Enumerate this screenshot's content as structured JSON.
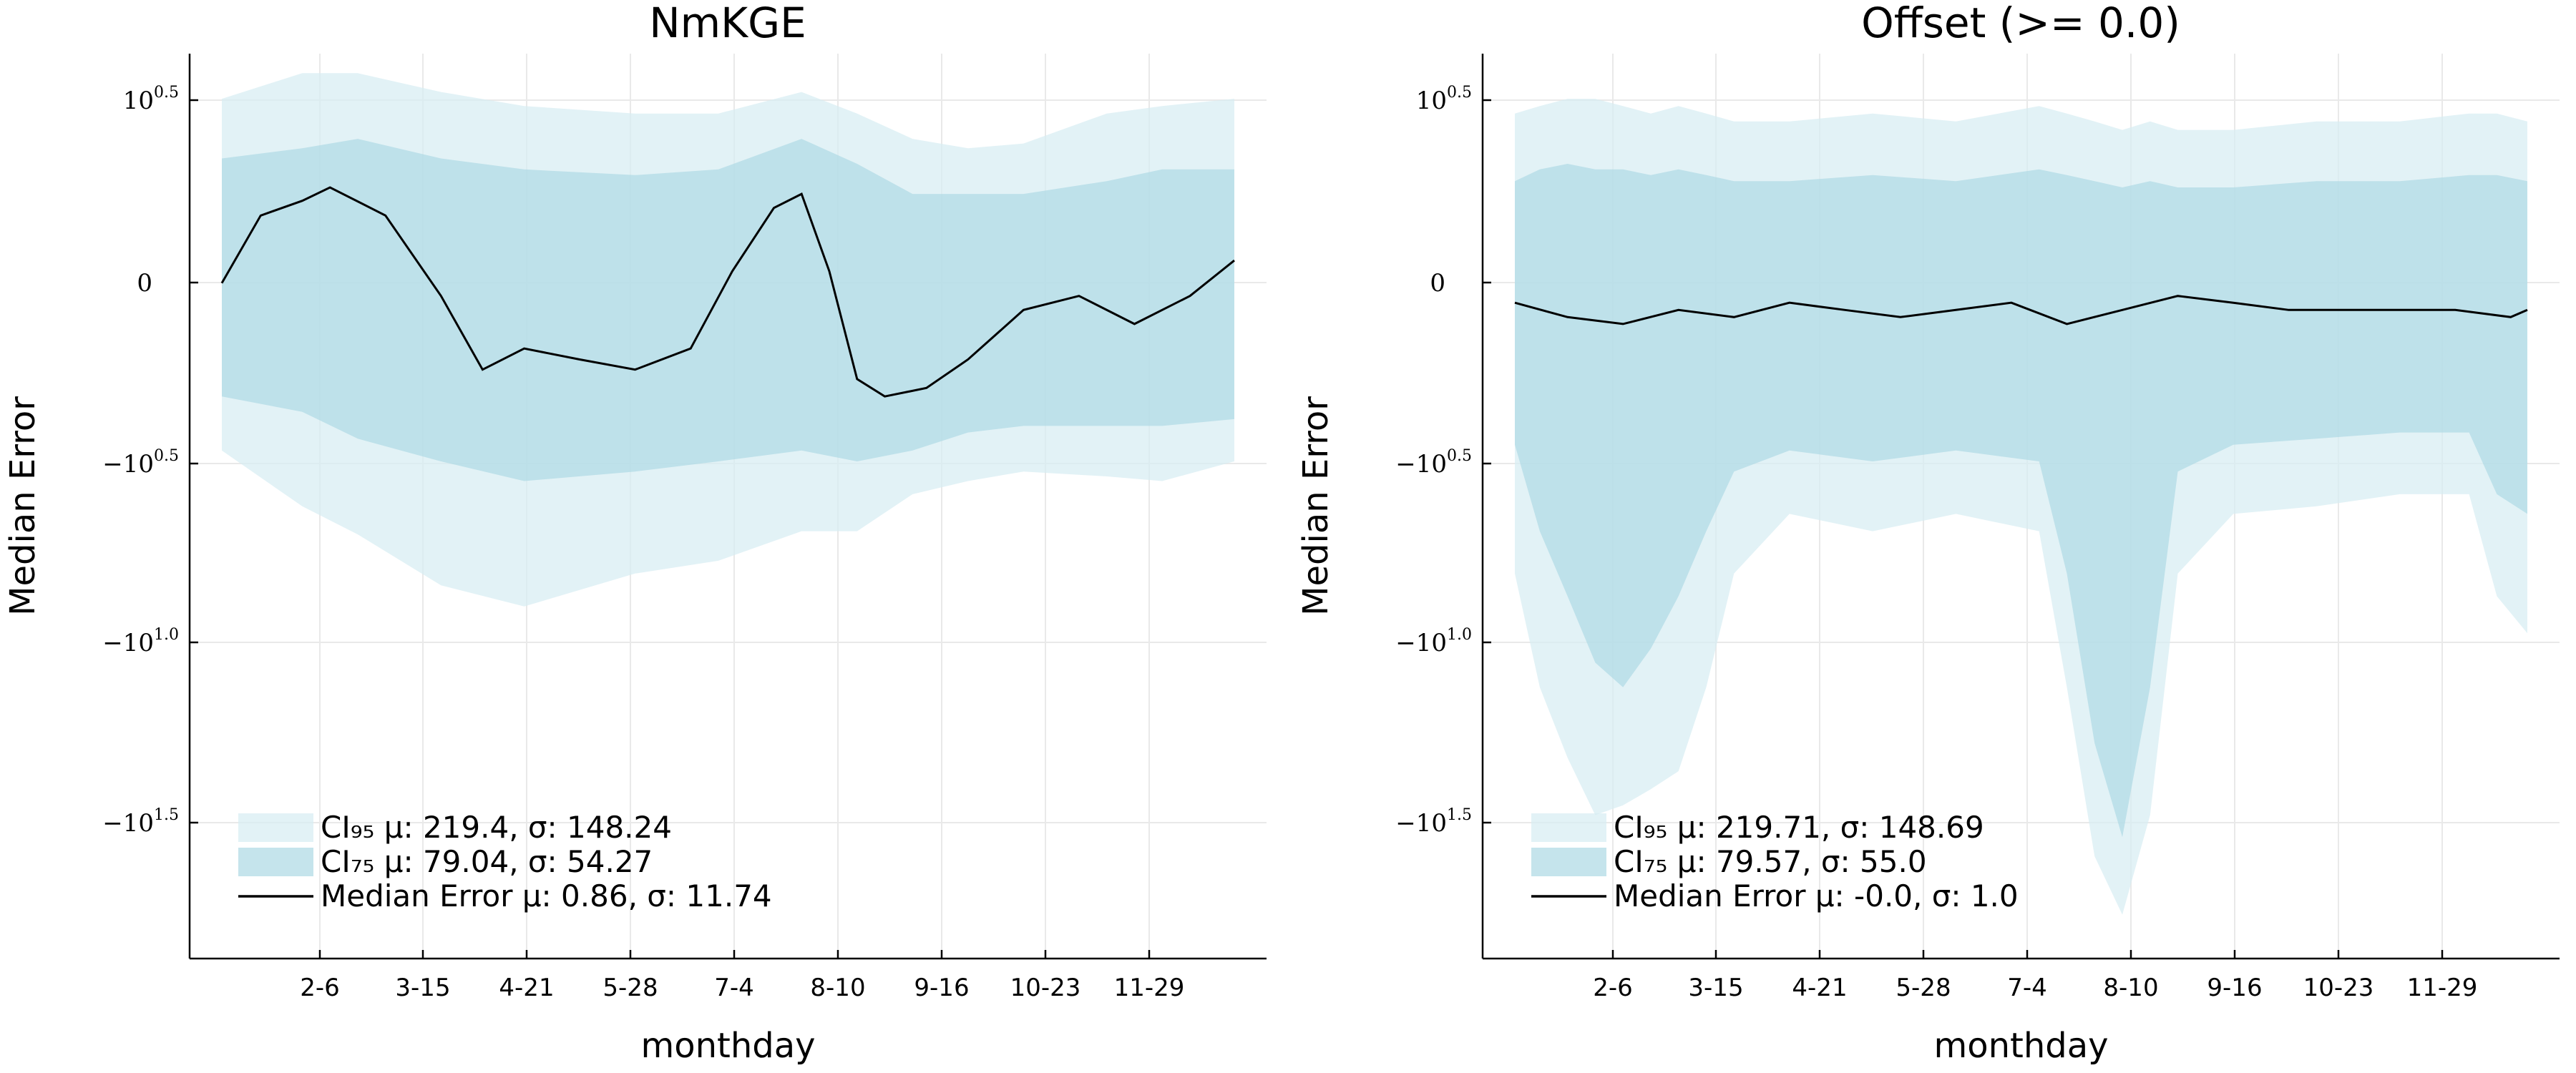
{
  "chart_data": [
    {
      "type": "area",
      "title": "NmKGE",
      "xlabel": "monthday",
      "ylabel": "Median Error",
      "x_tick_labels": [
        "2-6",
        "3-15",
        "4-21",
        "5-28",
        "7-4",
        "8-10",
        "9-16",
        "10-23",
        "11-29"
      ],
      "y_scale": "symlog",
      "y_tick_labels": [
        {
          "base": "10",
          "exp": "0.5",
          "sign": ""
        },
        {
          "base": "0",
          "exp": "",
          "sign": ""
        },
        {
          "base": "10",
          "exp": "0.5",
          "sign": "−"
        },
        {
          "base": "10",
          "exp": "1.0",
          "sign": "−"
        },
        {
          "base": "10",
          "exp": "1.5",
          "sign": "−"
        }
      ],
      "y_tick_values": [
        3.162,
        0,
        -3.162,
        -10,
        -31.62
      ],
      "grid": true,
      "legend_position": "bottom-left",
      "colors": {
        "ci95": "#d6edf2",
        "ci75": "#b2dbe6",
        "median": "#000000"
      },
      "series": [
        {
          "name": "CI95",
          "legend_label": "CI₉₅ μ: 219.4, σ: 148.24",
          "x": [
            1,
            30,
            50,
            80,
            110,
            150,
            180,
            210,
            230,
            250,
            270,
            290,
            320,
            340,
            366
          ],
          "upper": [
            3.2,
            4.0,
            4.0,
            3.4,
            3.0,
            2.8,
            2.8,
            3.4,
            2.8,
            2.2,
            2.0,
            2.1,
            2.8,
            3.0,
            3.2
          ],
          "lower": [
            -1.6,
            -2.8,
            -3.6,
            -5.5,
            -6.5,
            -5.0,
            -4.5,
            -3.5,
            -3.5,
            -2.5,
            -2.2,
            -2.0,
            -2.1,
            -2.2,
            -1.8
          ]
        },
        {
          "name": "CI75",
          "legend_label": "CI₇₅ μ: 79.04, σ: 54.27",
          "x": [
            1,
            30,
            50,
            80,
            110,
            150,
            180,
            210,
            230,
            250,
            270,
            290,
            320,
            340,
            366
          ],
          "upper": [
            1.8,
            2.0,
            2.2,
            1.8,
            1.6,
            1.5,
            1.6,
            2.2,
            1.7,
            1.2,
            1.2,
            1.2,
            1.4,
            1.6,
            1.6
          ],
          "lower": [
            -0.8,
            -1.0,
            -1.4,
            -1.8,
            -2.2,
            -2.0,
            -1.8,
            -1.6,
            -1.8,
            -1.6,
            -1.3,
            -1.2,
            -1.2,
            -1.2,
            -1.1
          ]
        },
        {
          "name": "Median Error",
          "legend_label": "Median Error μ: 0.86, σ: 11.74",
          "x": [
            1,
            15,
            30,
            40,
            60,
            80,
            95,
            110,
            130,
            150,
            170,
            185,
            200,
            210,
            220,
            230,
            240,
            255,
            270,
            290,
            310,
            330,
            350,
            366
          ],
          "y": [
            0.2,
            0.9,
            1.1,
            1.3,
            0.9,
            0.1,
            -0.5,
            -0.3,
            -0.4,
            -0.5,
            -0.3,
            0.3,
            1.0,
            1.2,
            0.3,
            -0.6,
            -0.8,
            -0.7,
            -0.4,
            0.0,
            0.1,
            -0.1,
            0.1,
            0.4
          ]
        }
      ]
    },
    {
      "type": "area",
      "title": "Offset (>= 0.0)",
      "xlabel": "monthday",
      "ylabel": "Median Error",
      "x_tick_labels": [
        "2-6",
        "3-15",
        "4-21",
        "5-28",
        "7-4",
        "8-10",
        "9-16",
        "10-23",
        "11-29"
      ],
      "y_scale": "symlog",
      "y_tick_labels": [
        {
          "base": "10",
          "exp": "0.5",
          "sign": ""
        },
        {
          "base": "0",
          "exp": "",
          "sign": ""
        },
        {
          "base": "10",
          "exp": "0.5",
          "sign": "−"
        },
        {
          "base": "10",
          "exp": "1.0",
          "sign": "−"
        },
        {
          "base": "10",
          "exp": "1.5",
          "sign": "−"
        }
      ],
      "y_tick_values": [
        3.162,
        0,
        -3.162,
        -10,
        -31.62
      ],
      "grid": true,
      "legend_position": "bottom-left",
      "colors": {
        "ci95": "#d6edf2",
        "ci75": "#b2dbe6",
        "median": "#000000"
      },
      "series": [
        {
          "name": "CI95",
          "legend_label": "CI₉₅ μ: 219.71, σ: 148.69",
          "x": [
            1,
            10,
            20,
            30,
            40,
            50,
            60,
            70,
            80,
            100,
            130,
            160,
            190,
            200,
            210,
            220,
            230,
            240,
            260,
            290,
            320,
            345,
            355,
            366
          ],
          "upper": [
            2.8,
            3.0,
            3.2,
            3.2,
            3.0,
            2.8,
            3.0,
            2.8,
            2.6,
            2.6,
            2.8,
            2.6,
            3.0,
            2.8,
            2.6,
            2.4,
            2.6,
            2.4,
            2.4,
            2.6,
            2.6,
            2.8,
            2.8,
            2.6
          ],
          "lower": [
            -5.0,
            -12.0,
            -20.0,
            -30.0,
            -28.0,
            -25.0,
            -22.0,
            -12.0,
            -5.0,
            -3.0,
            -3.5,
            -3.0,
            -3.5,
            -12.0,
            -40.0,
            -60.0,
            -30.0,
            -5.0,
            -3.0,
            -2.8,
            -2.5,
            -2.5,
            -6.0,
            -8.0
          ]
        },
        {
          "name": "CI75",
          "legend_label": "CI₇₅ μ: 79.57, σ: 55.0",
          "x": [
            1,
            10,
            20,
            30,
            40,
            50,
            60,
            70,
            80,
            100,
            130,
            160,
            190,
            200,
            210,
            220,
            230,
            240,
            260,
            290,
            320,
            345,
            355,
            366
          ],
          "upper": [
            1.4,
            1.6,
            1.7,
            1.6,
            1.6,
            1.5,
            1.6,
            1.5,
            1.4,
            1.4,
            1.5,
            1.4,
            1.6,
            1.5,
            1.4,
            1.3,
            1.4,
            1.3,
            1.3,
            1.4,
            1.4,
            1.5,
            1.5,
            1.4
          ],
          "lower": [
            -1.5,
            -3.5,
            -6.0,
            -10.0,
            -12.0,
            -9.0,
            -6.0,
            -3.5,
            -2.0,
            -1.6,
            -1.8,
            -1.6,
            -1.8,
            -5.0,
            -18.0,
            -35.0,
            -12.0,
            -2.0,
            -1.5,
            -1.4,
            -1.3,
            -1.3,
            -2.5,
            -3.0
          ]
        },
        {
          "name": "Median Error",
          "legend_label": "Median Error μ: -0.0, σ: 1.0",
          "x": [
            1,
            20,
            40,
            60,
            80,
            100,
            120,
            140,
            160,
            180,
            200,
            220,
            240,
            260,
            280,
            300,
            320,
            340,
            360,
            366
          ],
          "y": [
            0.05,
            -0.05,
            -0.1,
            0.0,
            -0.05,
            0.05,
            0.0,
            -0.05,
            0.0,
            0.05,
            -0.1,
            0.0,
            0.1,
            0.05,
            0.0,
            0.0,
            0.0,
            0.0,
            -0.05,
            0.0
          ]
        }
      ]
    }
  ]
}
